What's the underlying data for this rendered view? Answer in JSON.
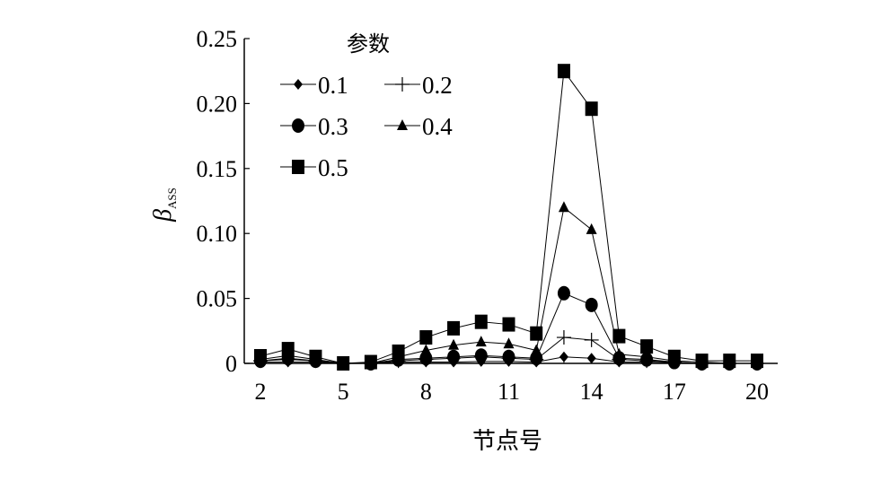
{
  "chart_data": {
    "type": "line",
    "title": "",
    "xlabel": "节点号",
    "ylabel": "β",
    "ylabel_sub": "ASS",
    "xlim": [
      1.4,
      20.6
    ],
    "ylim": [
      0,
      0.25
    ],
    "xticks": [
      2,
      5,
      8,
      11,
      14,
      17,
      20
    ],
    "yticks": [
      0,
      0.05,
      0.1,
      0.15,
      0.2,
      0.25
    ],
    "ytick_labels": [
      "0",
      "0.05",
      "0.10",
      "0.15",
      "0.20",
      "0.25"
    ],
    "grid": false,
    "legend": {
      "title": "参数",
      "placement": "top-left"
    },
    "x": [
      2,
      3,
      4,
      5,
      6,
      7,
      8,
      9,
      10,
      11,
      12,
      13,
      14,
      15,
      16,
      17,
      18,
      19,
      20
    ],
    "series": [
      {
        "name": "0.1",
        "marker": "diamond",
        "values": [
          0.001,
          0.001,
          0.001,
          0,
          0,
          0.001,
          0.001,
          0.001,
          0.0015,
          0.0015,
          0.001,
          0.005,
          0.004,
          0.001,
          0.001,
          0.0005,
          0,
          0,
          0
        ]
      },
      {
        "name": "0.2",
        "marker": "plus",
        "values": [
          0.002,
          0.003,
          0.002,
          0,
          0,
          0.002,
          0.003,
          0.004,
          0.005,
          0.004,
          0.003,
          0.02,
          0.018,
          0.003,
          0.002,
          0.001,
          0,
          0,
          0
        ]
      },
      {
        "name": "0.3",
        "marker": "circle",
        "values": [
          0.002,
          0.004,
          0.002,
          0,
          0,
          0.003,
          0.004,
          0.005,
          0.006,
          0.005,
          0.004,
          0.054,
          0.045,
          0.004,
          0.003,
          0.001,
          0,
          0,
          0
        ]
      },
      {
        "name": "0.4",
        "marker": "triangle",
        "values": [
          0.003,
          0.006,
          0.003,
          0,
          0,
          0.005,
          0.01,
          0.014,
          0.0165,
          0.015,
          0.01,
          0.12,
          0.103,
          0.007,
          0.005,
          0.002,
          0.001,
          0,
          0
        ]
      },
      {
        "name": "0.5",
        "marker": "square",
        "values": [
          0.0055,
          0.011,
          0.005,
          0,
          0.001,
          0.009,
          0.02,
          0.027,
          0.032,
          0.03,
          0.023,
          0.225,
          0.196,
          0.021,
          0.013,
          0.005,
          0.002,
          0.002,
          0.002
        ]
      }
    ],
    "color": "#000000"
  }
}
